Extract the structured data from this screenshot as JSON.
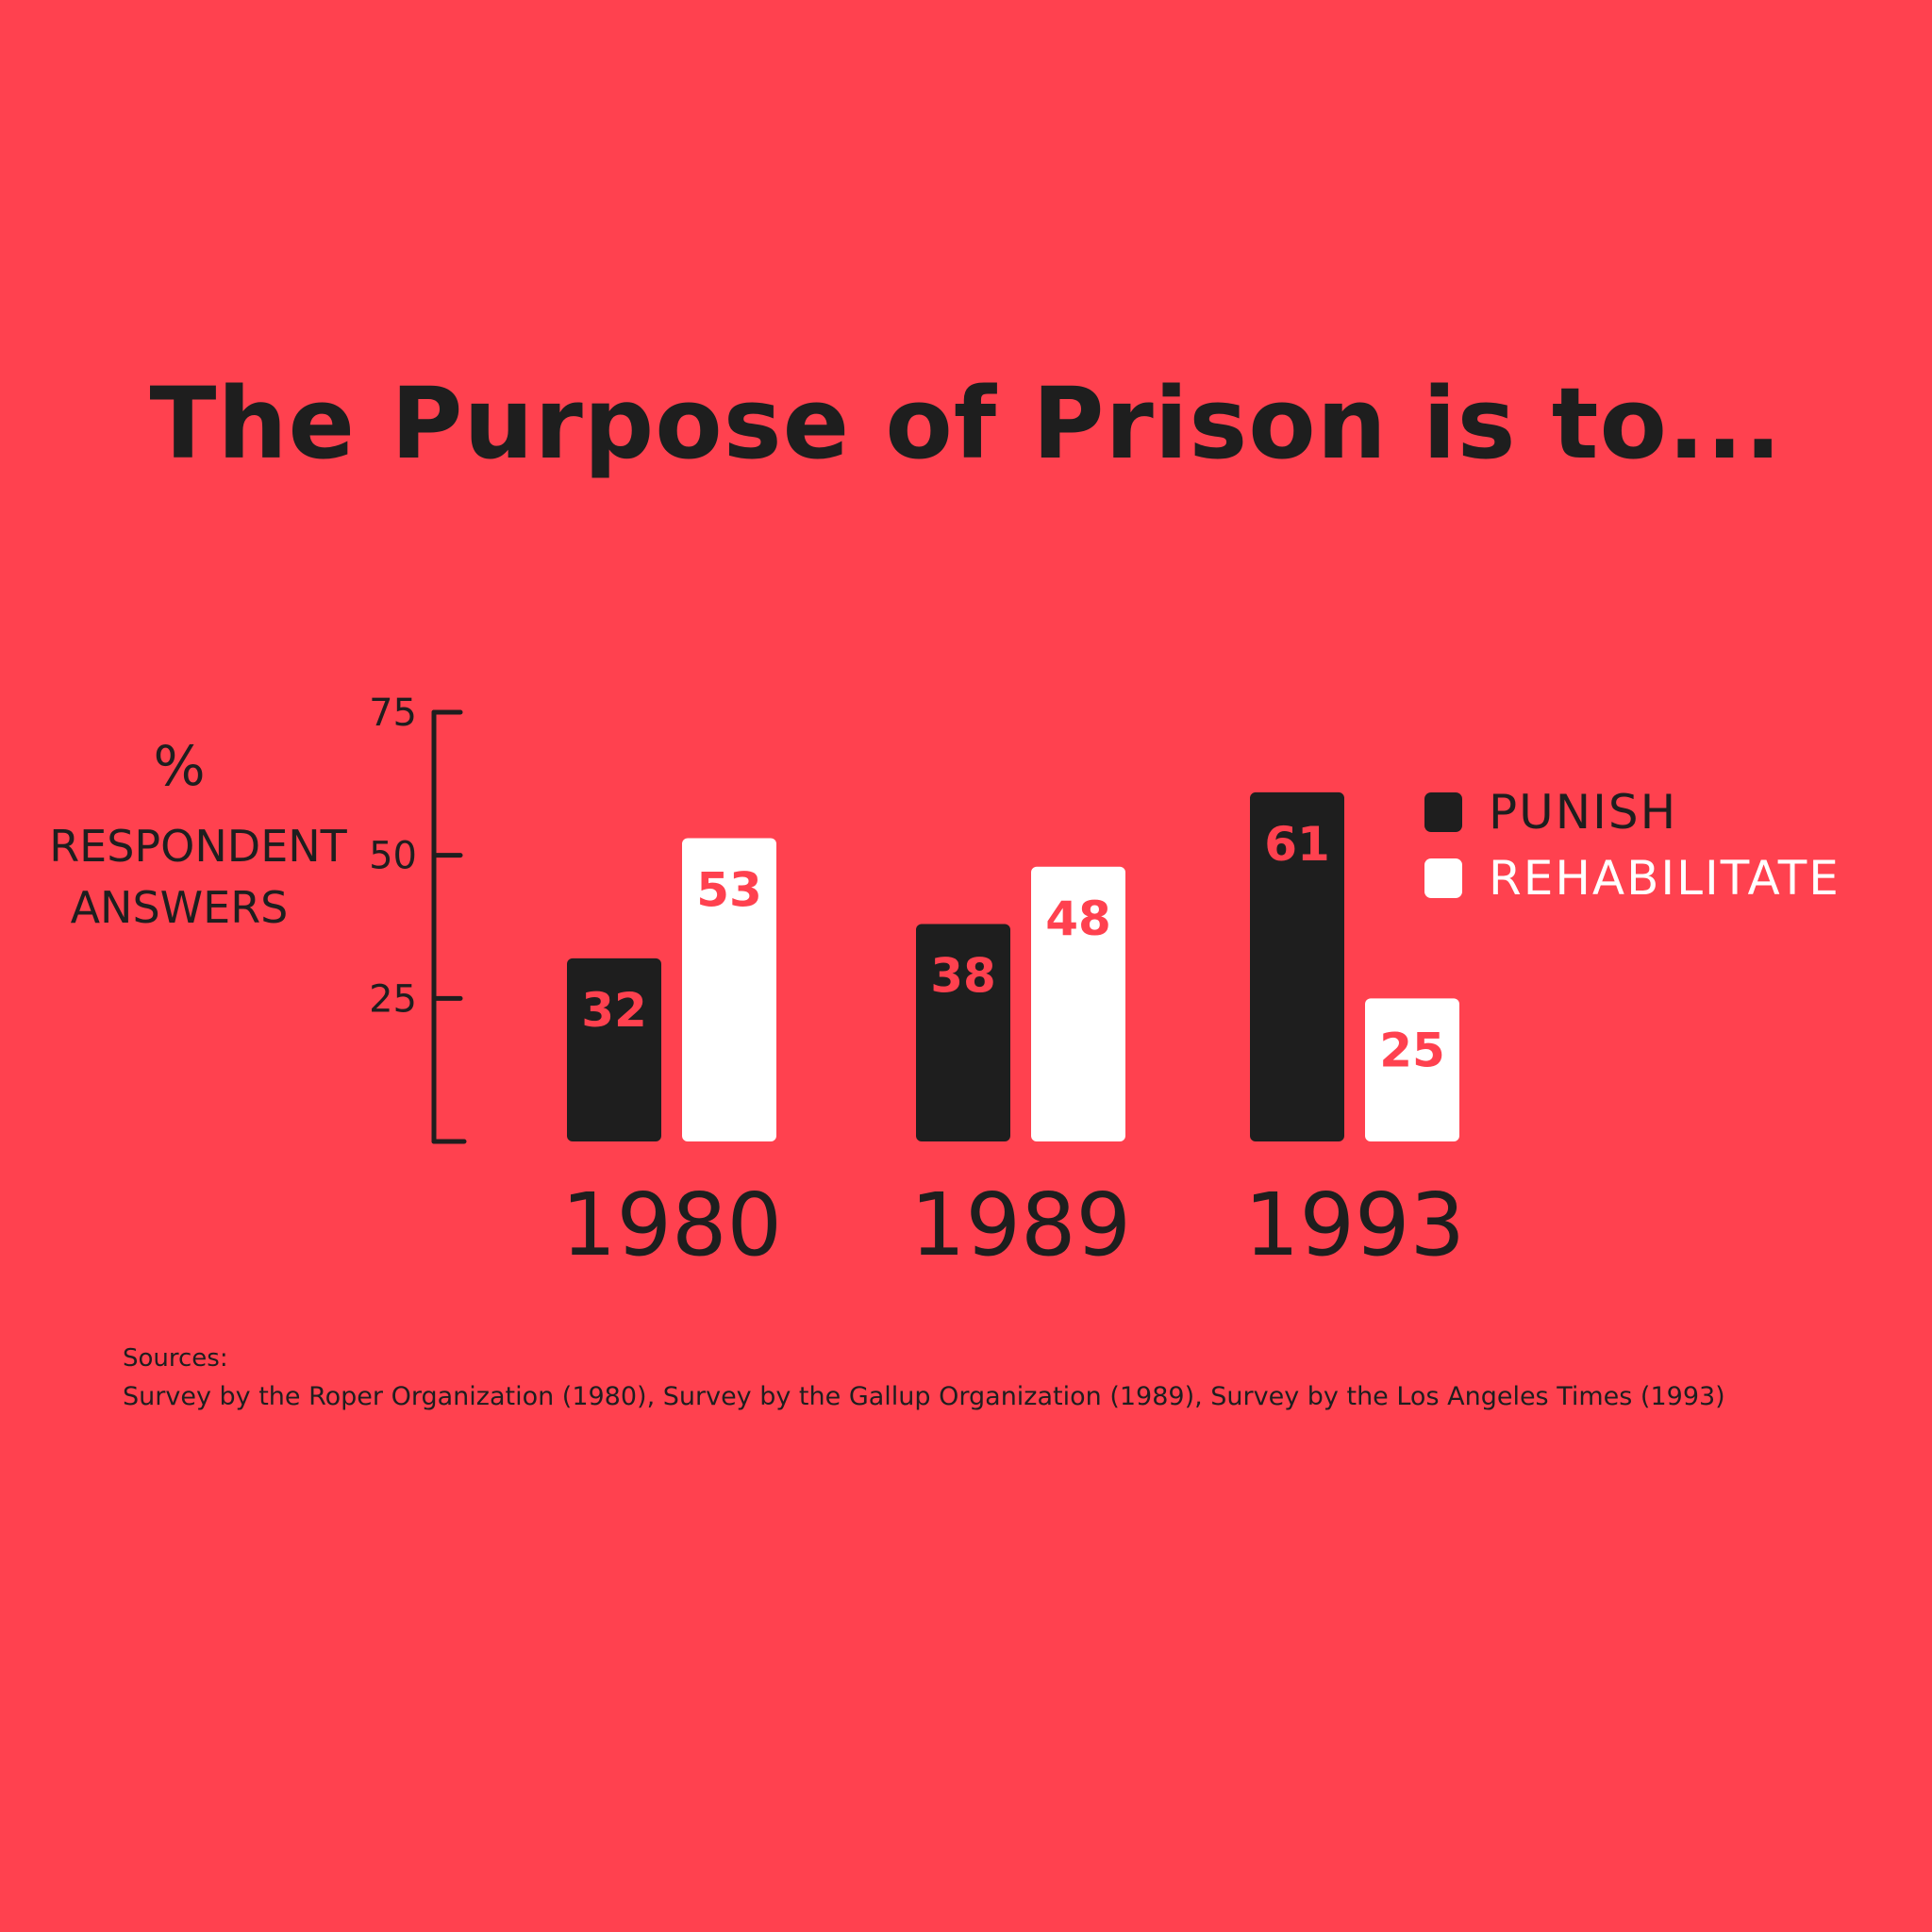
{
  "colors": {
    "background": "#FF414F",
    "punish": "#1E1E1E",
    "rehabilitate": "#FFFFFF",
    "value_text": "#FF414F",
    "axis": "#1E1E1E"
  },
  "sources": {
    "label": "Sources:",
    "text": "Survey by the Roper Organization (1980), Survey by the Gallup Organization (1989), Survey by the Los Angeles Times (1993)"
  },
  "chart_data": {
    "type": "bar",
    "title": "The Purpose of Prison is to...",
    "ylabel": {
      "unit": "%",
      "line1": "RESPONDENT",
      "line2": "ANSWERS"
    },
    "ylim": [
      0,
      75
    ],
    "yticks": [
      25,
      50,
      75
    ],
    "categories": [
      "1980",
      "1989",
      "1993"
    ],
    "series": [
      {
        "name": "PUNISH",
        "values": [
          32,
          38,
          61
        ]
      },
      {
        "name": "REHABILITATE",
        "values": [
          53,
          48,
          25
        ]
      }
    ],
    "legend": "right",
    "grid": false
  }
}
